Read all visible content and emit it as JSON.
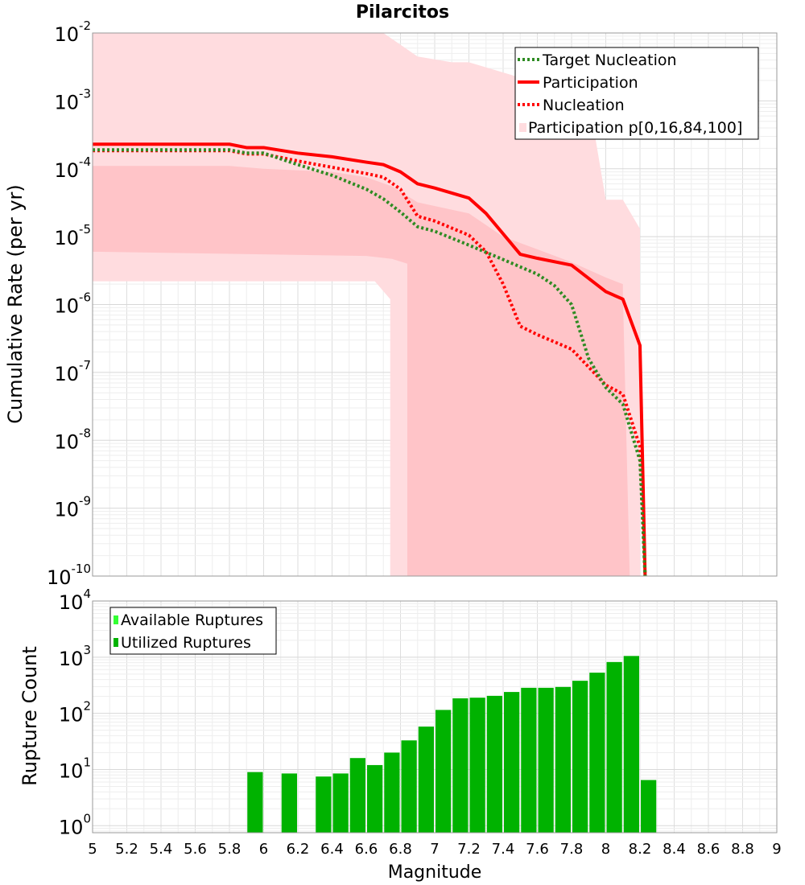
{
  "chart_data": [
    {
      "type": "line",
      "title": "Pilarcitos",
      "ylabel": "Cumulative Rate (per yr)",
      "xlim": [
        5,
        9
      ],
      "ylim": [
        1e-10,
        0.01
      ],
      "yscale": "log",
      "y_tick_labels": [
        {
          "base": "10",
          "exp": "-2"
        },
        {
          "base": "10",
          "exp": "-3"
        },
        {
          "base": "10",
          "exp": "-4"
        },
        {
          "base": "10",
          "exp": "-5"
        },
        {
          "base": "10",
          "exp": "-6"
        },
        {
          "base": "10",
          "exp": "-7"
        },
        {
          "base": "10",
          "exp": "-8"
        },
        {
          "base": "10",
          "exp": "-9"
        },
        {
          "base": "10",
          "exp": "-10"
        }
      ],
      "grid": true,
      "legend_position": "top-right",
      "legend": [
        "Target Nucleation",
        "Participation",
        "Nucleation",
        "Participation p[0,16,84,100]"
      ],
      "colors": {
        "target": "#2e8b22",
        "participation": "#ff0000",
        "nucleation": "#ff0000",
        "band_outer": "#ffdcdf",
        "band_inner": "#ffc4c8"
      },
      "series": [
        {
          "name": "Target Nucleation",
          "style": "dotted",
          "x": [
            5,
            5.8,
            5.9,
            6.0,
            6.2,
            6.4,
            6.6,
            6.7,
            6.8,
            6.9,
            7.0,
            7.2,
            7.4,
            7.6,
            7.7,
            7.8,
            7.9,
            8.0,
            8.1,
            8.2,
            8.23
          ],
          "y": [
            0.00019,
            0.00019,
            0.00017,
            0.00017,
            0.000115,
            8e-05,
            5e-05,
            3.6e-05,
            2.3e-05,
            1.4e-05,
            1.2e-05,
            7.5e-06,
            4.6e-06,
            2.8e-06,
            1.9e-06,
            1e-06,
            1.6e-07,
            6e-08,
            3.4e-08,
            5e-09,
            1e-10
          ]
        },
        {
          "name": "Participation",
          "style": "solid",
          "x": [
            5,
            5.8,
            5.9,
            6.0,
            6.2,
            6.4,
            6.6,
            6.7,
            6.8,
            6.9,
            7.0,
            7.2,
            7.3,
            7.5,
            7.6,
            7.8,
            8.0,
            8.1,
            8.2,
            8.23
          ],
          "y": [
            0.00023,
            0.00023,
            0.000205,
            0.000205,
            0.00017,
            0.00015,
            0.000125,
            0.000115,
            9e-05,
            6e-05,
            5.2e-05,
            3.7e-05,
            2.2e-05,
            5.5e-06,
            4.8e-06,
            3.8e-06,
            1.55e-06,
            1.2e-06,
            2.5e-07,
            1e-10
          ]
        },
        {
          "name": "Nucleation",
          "style": "dotted",
          "x": [
            5,
            5.8,
            5.9,
            6.0,
            6.2,
            6.4,
            6.6,
            6.7,
            6.8,
            6.9,
            7.0,
            7.2,
            7.3,
            7.4,
            7.5,
            7.6,
            7.8,
            7.9,
            8.0,
            8.1,
            8.2,
            8.23
          ],
          "y": [
            0.000185,
            0.000185,
            0.000165,
            0.000165,
            0.00013,
            0.000105,
            8.5e-05,
            7.5e-05,
            5e-05,
            2e-05,
            1.7e-05,
            1.05e-05,
            6e-06,
            2e-06,
            4.8e-07,
            3.6e-07,
            2.2e-07,
            1.2e-07,
            6.5e-08,
            4.8e-08,
            8e-09,
            1e-10
          ]
        },
        {
          "name": "Participation p[0,16,84,100]",
          "style": "band",
          "outer_x": [
            5,
            6.7,
            6.9,
            7.1,
            7.2,
            7.9,
            8.0,
            8.1,
            8.2,
            8.2,
            8.15,
            8.14,
            6.8,
            6.74,
            6.74,
            6.65,
            5
          ],
          "outer_y": [
            0.01,
            0.01,
            0.0045,
            0.0037,
            0.0037,
            0.0011,
            3.5e-05,
            3.5e-05,
            1.3e-05,
            1e-10,
            1e-10,
            1e-10,
            1e-10,
            1e-10,
            1.2e-06,
            2.2e-06,
            2.2e-06
          ],
          "inner_x": [
            5,
            5.8,
            6.0,
            6.4,
            6.6,
            6.75,
            6.9,
            7.2,
            7.4,
            7.6,
            7.8,
            8.0,
            8.1,
            8.1,
            8.14,
            6.84,
            6.84,
            6.75,
            6.6,
            5
          ],
          "inner_y": [
            0.00011,
            0.00011,
            0.0001,
            9e-05,
            7.5e-05,
            5.5e-05,
            3.2e-05,
            2.2e-05,
            1e-05,
            6.5e-06,
            4.2e-06,
            2.5e-06,
            2e-06,
            1.5e-06,
            1e-10,
            1e-10,
            4e-06,
            4.7e-06,
            5.2e-06,
            6e-06
          ]
        }
      ]
    },
    {
      "type": "bar",
      "xlabel": "Magnitude",
      "ylabel": "Rupture Count",
      "xlim": [
        5,
        9
      ],
      "ylim": [
        0.75,
        10000
      ],
      "yscale": "log",
      "y_tick_labels": [
        {
          "base": "10",
          "exp": "4"
        },
        {
          "base": "10",
          "exp": "3"
        },
        {
          "base": "10",
          "exp": "2"
        },
        {
          "base": "10",
          "exp": "1"
        },
        {
          "base": "10",
          "exp": "0"
        }
      ],
      "x_ticks": [
        "5",
        "5.2",
        "5.4",
        "5.6",
        "5.8",
        "6",
        "6.2",
        "6.4",
        "6.6",
        "6.8",
        "7",
        "7.2",
        "7.4",
        "7.6",
        "7.8",
        "8",
        "8.2",
        "8.4",
        "8.6",
        "8.8",
        "9"
      ],
      "x_tick_values": [
        5,
        5.2,
        5.4,
        5.6,
        5.8,
        6,
        6.2,
        6.4,
        6.6,
        6.8,
        7,
        7.2,
        7.4,
        7.6,
        7.8,
        8,
        8.2,
        8.4,
        8.6,
        8.8,
        9
      ],
      "bin_width": 0.1,
      "grid": true,
      "legend_position": "top-left",
      "legend": [
        "Available Ruptures",
        "Utilized Ruptures"
      ],
      "colors": {
        "available": "#33ff33",
        "utilized": "#00b200"
      },
      "series": [
        {
          "name": "Utilized Ruptures",
          "x": [
            5.95,
            6.15,
            6.35,
            6.45,
            6.55,
            6.65,
            6.75,
            6.85,
            6.95,
            7.05,
            7.15,
            7.25,
            7.35,
            7.45,
            7.55,
            7.65,
            7.75,
            7.85,
            7.95,
            8.05,
            8.15,
            8.25
          ],
          "values": [
            9,
            8.5,
            7.5,
            8.5,
            16,
            12,
            20,
            33,
            58,
            115,
            185,
            190,
            205,
            240,
            285,
            285,
            295,
            380,
            530,
            820,
            1050,
            6.5
          ]
        }
      ]
    }
  ]
}
